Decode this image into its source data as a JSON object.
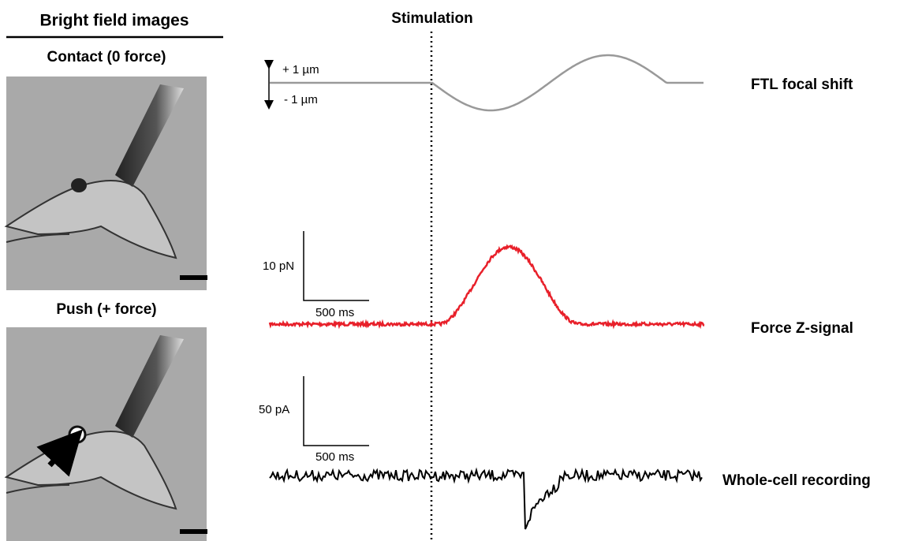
{
  "header": {
    "title": "Bright field images"
  },
  "panels": [
    {
      "label": "Contact (0 force)"
    },
    {
      "label": "Push (+ force)"
    }
  ],
  "stimulation": "Stimulation",
  "traces": [
    {
      "name": "FTL focal shift",
      "scale": [
        "+ 1 µm",
        "- 1 µm"
      ]
    },
    {
      "name": "Force Z-signal",
      "scale": [
        "10 pN",
        "500 ms"
      ]
    },
    {
      "name": "Whole-cell recording",
      "scale": [
        "50 pA",
        "500 ms"
      ]
    }
  ]
}
